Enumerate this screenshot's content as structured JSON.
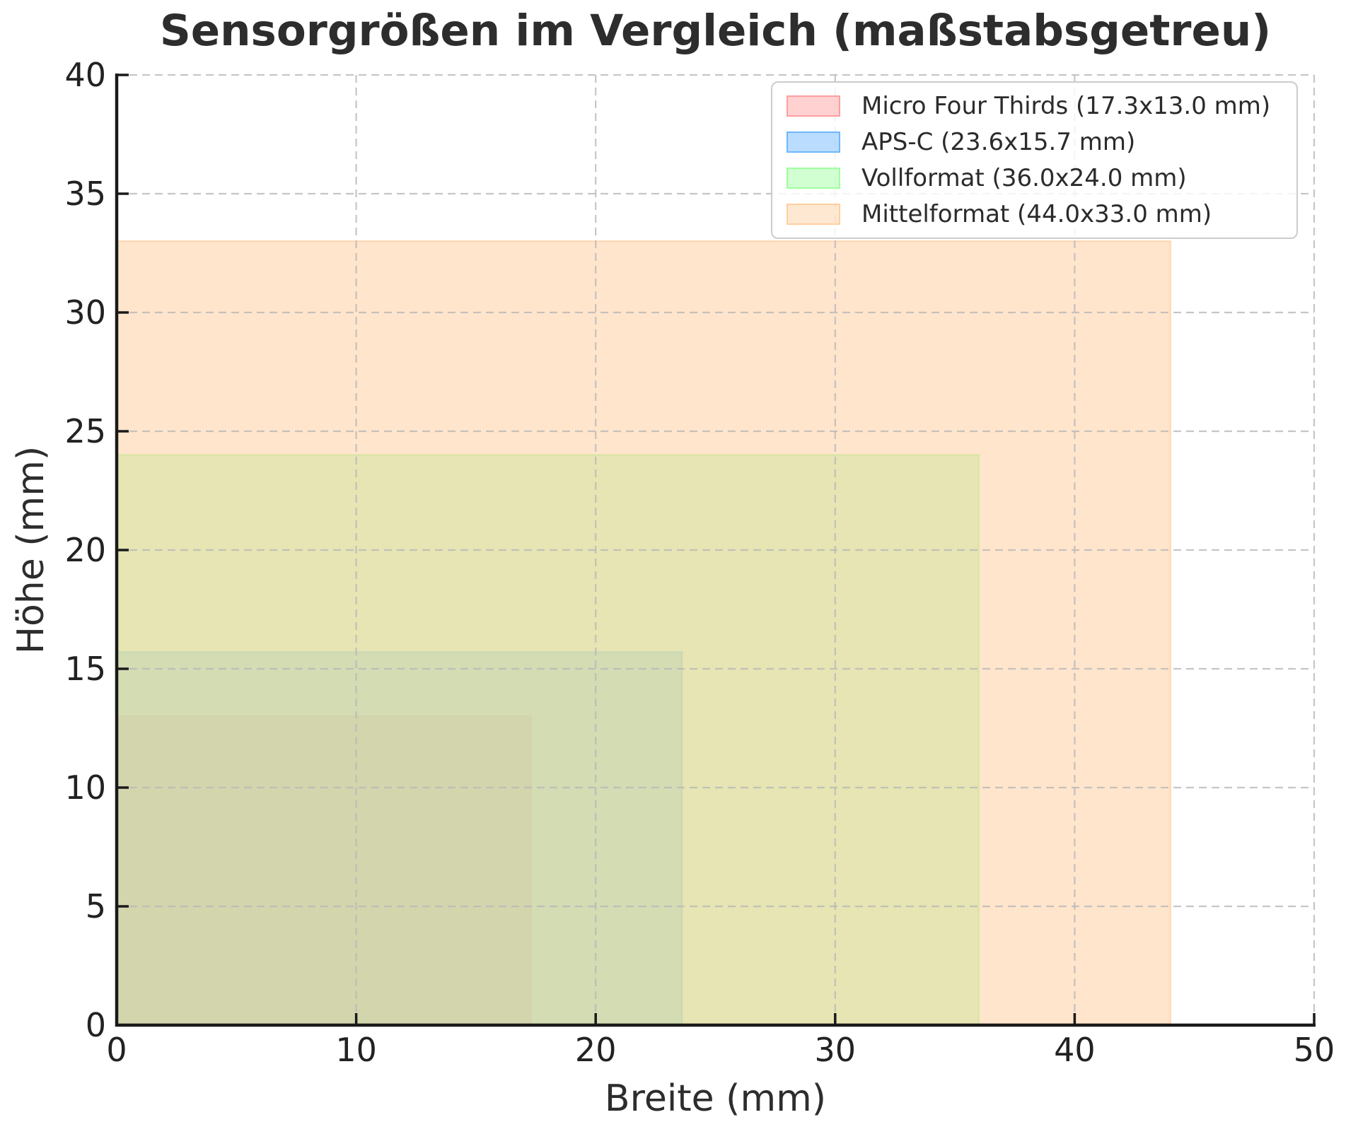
{
  "chart_data": {
    "type": "rectangles",
    "description": "Overlapping semi-transparent rectangles anchored at origin, drawn to scale, comparing camera sensor sizes",
    "title": "Sensorgrößen im Vergleich (maßstabsgetreu)",
    "xlabel": "Breite (mm)",
    "ylabel": "Höhe (mm)",
    "xlim": [
      0,
      50
    ],
    "ylim": [
      0,
      40
    ],
    "xticks": [
      0,
      10,
      20,
      30,
      40,
      50
    ],
    "yticks": [
      0,
      5,
      10,
      15,
      20,
      25,
      30,
      35,
      40
    ],
    "grid": {
      "visible": true,
      "style": "dashed",
      "color": "#b8b8b8"
    },
    "aspect": "equal",
    "fill_alpha": 0.5,
    "legend": {
      "location": "upper right"
    },
    "series": [
      {
        "name": "Micro Four Thirds",
        "label": "Micro Four Thirds (17.3x13.0 mm)",
        "x0": 0,
        "y0": 0,
        "width_mm": 17.3,
        "height_mm": 13.0,
        "color": "#ff9999"
      },
      {
        "name": "APS-C",
        "label": "APS-C (23.6x15.7 mm)",
        "x0": 0,
        "y0": 0,
        "width_mm": 23.6,
        "height_mm": 15.7,
        "color": "#66b3ff"
      },
      {
        "name": "Vollformat",
        "label": "Vollformat (36.0x24.0 mm)",
        "x0": 0,
        "y0": 0,
        "width_mm": 36.0,
        "height_mm": 24.0,
        "color": "#99ff99"
      },
      {
        "name": "Mittelformat",
        "label": "Mittelformat (44.0x33.0 mm)",
        "x0": 0,
        "y0": 0,
        "width_mm": 44.0,
        "height_mm": 33.0,
        "color": "#ffcc99"
      }
    ]
  }
}
